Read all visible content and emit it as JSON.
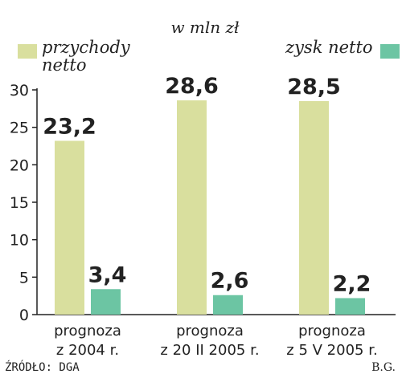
{
  "chart_data": {
    "type": "bar",
    "unit_label": "w mln zł",
    "categories": [
      [
        "prognoza",
        "z 2004 r."
      ],
      [
        "prognoza",
        "z 20 II 2005 r."
      ],
      [
        "prognoza",
        "z 5 V 2005 r."
      ]
    ],
    "series": [
      {
        "name": "przychody netto",
        "values": [
          23.2,
          28.6,
          28.5
        ],
        "labels": [
          "23,2",
          "28,6",
          "28,5"
        ],
        "color": "#d9df9e"
      },
      {
        "name": "zysk netto",
        "values": [
          3.4,
          2.6,
          2.2
        ],
        "labels": [
          "3,4",
          "2,6",
          "2,2"
        ],
        "color": "#6cc5a3"
      }
    ],
    "yticks": [
      0,
      5,
      10,
      15,
      20,
      25,
      30
    ],
    "ylim": [
      0,
      30
    ],
    "grid": false,
    "legend": "top"
  },
  "legend": {
    "revenue_line1": "przychody",
    "revenue_line2": "netto",
    "profit": "zysk netto"
  },
  "footer": {
    "source": "ŹRÓDŁO: DGA",
    "credit": "B.G."
  }
}
